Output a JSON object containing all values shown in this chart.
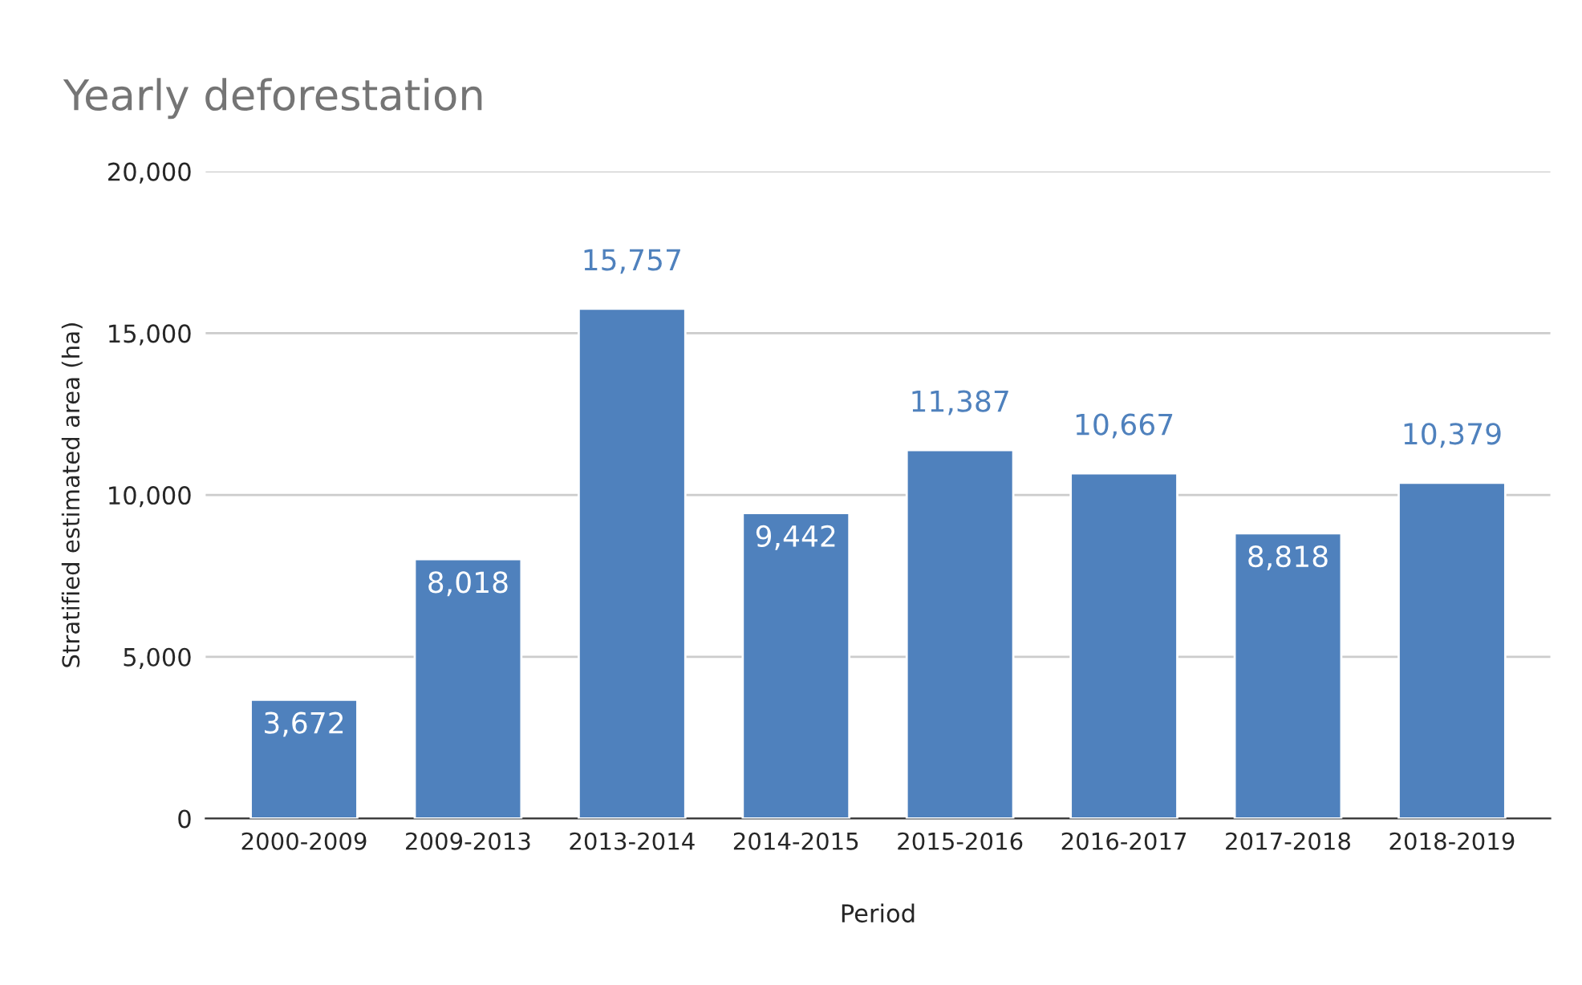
{
  "chart_data": {
    "type": "bar",
    "title": "Yearly deforestation",
    "xlabel": "Period",
    "ylabel": "Stratified estimated area (ha)",
    "categories": [
      "2000-2009",
      "2009-2013",
      "2013-2014",
      "2014-2015",
      "2015-2016",
      "2016-2017",
      "2017-2018",
      "2018-2019"
    ],
    "values": [
      3672,
      8018,
      15757,
      9442,
      11387,
      10667,
      8818,
      10379
    ],
    "value_labels": [
      "3,672",
      "8,018",
      "15,757",
      "9,442",
      "11,387",
      "10,667",
      "8,818",
      "10,379"
    ],
    "color": "#4f81bd",
    "ylim": [
      0,
      20000
    ],
    "yticks": [
      {
        "value": 0,
        "label": "0"
      },
      {
        "value": 5000,
        "label": "5,000"
      },
      {
        "value": 10000,
        "label": "10,000"
      },
      {
        "value": 15000,
        "label": "15,000"
      },
      {
        "value": 20000,
        "label": "20,000"
      }
    ],
    "grid": "y",
    "legend": false
  }
}
